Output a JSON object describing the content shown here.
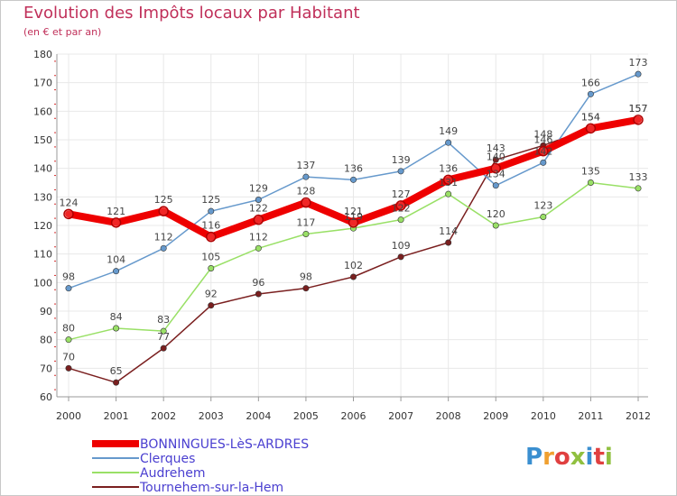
{
  "chart_data": {
    "type": "line",
    "title": "Evolution des Impôts locaux par Habitant",
    "subtitle": "(en € et par an)",
    "xlabel": "",
    "ylabel": "",
    "ylim": [
      60,
      180
    ],
    "yticks": [
      60,
      70,
      80,
      90,
      100,
      110,
      120,
      130,
      140,
      150,
      160,
      170,
      180
    ],
    "categories": [
      "2000",
      "2001",
      "2002",
      "2003",
      "2004",
      "2005",
      "2006",
      "2007",
      "2008",
      "2009",
      "2010",
      "2011",
      "2012"
    ],
    "series": [
      {
        "name": "Tournehem-sur-la-Hem",
        "color": "#7a1f1f",
        "values": [
          70,
          65,
          77,
          92,
          96,
          98,
          102,
          109,
          114,
          143,
          148,
          154,
          157
        ]
      },
      {
        "name": "Audrehem",
        "color": "#99e066",
        "values": [
          80,
          84,
          83,
          105,
          112,
          117,
          119,
          122,
          131,
          120,
          123,
          135,
          133
        ]
      },
      {
        "name": "Clerques",
        "color": "#6699cc",
        "values": [
          98,
          104,
          112,
          125,
          129,
          137,
          136,
          139,
          149,
          134,
          142,
          166,
          173
        ]
      },
      {
        "name": "BONNINGUES-LèS-ARDRES",
        "color": "#ee0000",
        "values": [
          124,
          121,
          125,
          116,
          122,
          128,
          121,
          127,
          136,
          140,
          146,
          154,
          157
        ]
      }
    ],
    "legend": [
      "BONNINGUES-LèS-ARDRES",
      "Clerques",
      "Audrehem",
      "Tournehem-sur-la-Hem"
    ],
    "legend_position": "bottom-left"
  },
  "logo": {
    "text": "Proxiti"
  }
}
